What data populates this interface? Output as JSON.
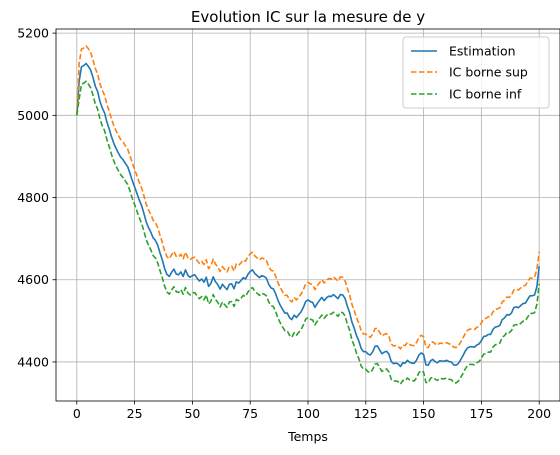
{
  "chart_data": {
    "type": "line",
    "title": "Evolution IC sur la mesure de y",
    "xlabel": "Temps",
    "ylabel": "",
    "xlim": [
      -9,
      209
    ],
    "ylim": [
      4305,
      5210
    ],
    "xticks": [
      0,
      25,
      50,
      75,
      100,
      125,
      150,
      175,
      200
    ],
    "yticks": [
      4400,
      4600,
      4800,
      5000,
      5200
    ],
    "grid": true,
    "legend_position": "top-right",
    "series": [
      {
        "name": "Estimation",
        "color": "#1f77b4",
        "dash": "solid",
        "x": [
          0,
          1,
          2,
          3,
          4,
          5,
          6,
          7,
          8,
          9,
          10,
          11,
          12,
          13,
          14,
          15,
          16,
          17,
          18,
          19,
          20,
          21,
          22,
          23,
          24,
          25,
          26,
          27,
          28,
          29,
          30,
          31,
          32,
          33,
          34,
          35,
          36,
          37,
          38,
          39,
          40,
          41,
          42,
          43,
          44,
          45,
          46,
          47,
          48,
          49,
          50,
          51,
          52,
          53,
          54,
          55,
          56,
          57,
          58,
          59,
          60,
          61,
          62,
          63,
          64,
          65,
          66,
          67,
          68,
          69,
          70,
          71,
          72,
          73,
          74,
          75,
          76,
          77,
          78,
          79,
          80,
          81,
          82,
          83,
          84,
          85,
          86,
          87,
          88,
          89,
          90,
          91,
          92,
          93,
          94,
          95,
          96,
          97,
          98,
          99,
          100,
          101,
          102,
          103,
          104,
          105,
          106,
          107,
          108,
          109,
          110,
          111,
          112,
          113,
          114,
          115,
          116,
          117,
          118,
          119,
          120,
          121,
          122,
          123,
          124,
          125,
          126,
          127,
          128,
          129,
          130,
          131,
          132,
          133,
          134,
          135,
          136,
          137,
          138,
          139,
          140,
          141,
          142,
          143,
          144,
          145,
          146,
          147,
          148,
          149,
          150,
          151,
          152,
          153,
          154,
          155,
          156,
          157,
          158,
          159,
          160,
          161,
          162,
          163,
          164,
          165,
          166,
          167,
          168,
          169,
          170,
          171,
          172,
          173,
          174,
          175,
          176,
          177,
          178,
          179,
          180,
          181,
          182,
          183,
          184,
          185,
          186,
          187,
          188,
          189,
          190,
          191,
          192,
          193,
          194,
          195,
          196,
          197,
          198,
          199,
          200
        ],
        "values": [
          5000,
          5082,
          5118,
          5121,
          5126,
          5119,
          5110,
          5092,
          5071,
          5058,
          5034,
          5018,
          5006,
          4984,
          4967,
          4948,
          4932,
          4919,
          4908,
          4898,
          4892,
          4883,
          4875,
          4859,
          4841,
          4826,
          4810,
          4794,
          4781,
          4762,
          4741,
          4727,
          4716,
          4702,
          4696,
          4684,
          4665,
          4648,
          4627,
          4613,
          4608,
          4618,
          4626,
          4614,
          4612,
          4619,
          4608,
          4624,
          4611,
          4606,
          4610,
          4612,
          4604,
          4597,
          4602,
          4594,
          4606,
          4584,
          4591,
          4607,
          4595,
          4588,
          4577,
          4589,
          4582,
          4576,
          4589,
          4590,
          4578,
          4595,
          4592,
          4598,
          4605,
          4602,
          4613,
          4620,
          4624,
          4615,
          4610,
          4605,
          4610,
          4608,
          4604,
          4589,
          4580,
          4578,
          4566,
          4550,
          4538,
          4528,
          4519,
          4519,
          4508,
          4503,
          4514,
          4508,
          4515,
          4522,
          4533,
          4547,
          4551,
          4547,
          4545,
          4533,
          4542,
          4550,
          4557,
          4549,
          4556,
          4560,
          4559,
          4564,
          4559,
          4554,
          4564,
          4563,
          4555,
          4536,
          4520,
          4497,
          4482,
          4464,
          4451,
          4433,
          4425,
          4425,
          4419,
          4417,
          4425,
          4438,
          4439,
          4429,
          4420,
          4424,
          4426,
          4419,
          4401,
          4396,
          4397,
          4395,
          4389,
          4398,
          4397,
          4404,
          4399,
          4397,
          4397,
          4405,
          4417,
          4422,
          4418,
          4393,
          4392,
          4403,
          4406,
          4401,
          4398,
          4403,
          4402,
          4402,
          4404,
          4401,
          4400,
          4393,
          4392,
          4396,
          4405,
          4415,
          4426,
          4434,
          4437,
          4437,
          4436,
          4441,
          4444,
          4452,
          4462,
          4463,
          4467,
          4467,
          4479,
          4485,
          4486,
          4489,
          4503,
          4507,
          4515,
          4514,
          4519,
          4532,
          4534,
          4532,
          4537,
          4542,
          4543,
          4552,
          4561,
          4561,
          4563,
          4583,
          4633
        ]
      },
      {
        "name": "IC borne sup",
        "color": "#ff7f0e",
        "dash": "dashed",
        "x": [
          0,
          1,
          2,
          3,
          4,
          5,
          6,
          7,
          8,
          9,
          10,
          11,
          12,
          13,
          14,
          15,
          16,
          17,
          18,
          19,
          20,
          21,
          22,
          23,
          24,
          25,
          26,
          27,
          28,
          29,
          30,
          31,
          32,
          33,
          34,
          35,
          36,
          37,
          38,
          39,
          40,
          41,
          42,
          43,
          44,
          45,
          46,
          47,
          48,
          49,
          50,
          51,
          52,
          53,
          54,
          55,
          56,
          57,
          58,
          59,
          60,
          61,
          62,
          63,
          64,
          65,
          66,
          67,
          68,
          69,
          70,
          71,
          72,
          73,
          74,
          75,
          76,
          77,
          78,
          79,
          80,
          81,
          82,
          83,
          84,
          85,
          86,
          87,
          88,
          89,
          90,
          91,
          92,
          93,
          94,
          95,
          96,
          97,
          98,
          99,
          100,
          101,
          102,
          103,
          104,
          105,
          106,
          107,
          108,
          109,
          110,
          111,
          112,
          113,
          114,
          115,
          116,
          117,
          118,
          119,
          120,
          121,
          122,
          123,
          124,
          125,
          126,
          127,
          128,
          129,
          130,
          131,
          132,
          133,
          134,
          135,
          136,
          137,
          138,
          139,
          140,
          141,
          142,
          143,
          144,
          145,
          146,
          147,
          148,
          149,
          150,
          151,
          152,
          153,
          154,
          155,
          156,
          157,
          158,
          159,
          160,
          161,
          162,
          163,
          164,
          165,
          166,
          167,
          168,
          169,
          170,
          171,
          172,
          173,
          174,
          175,
          176,
          177,
          178,
          179,
          180,
          181,
          182,
          183,
          184,
          185,
          186,
          187,
          188,
          189,
          190,
          191,
          192,
          193,
          194,
          195,
          196,
          197,
          198,
          199,
          200
        ],
        "values": [
          5000,
          5125,
          5161,
          5164,
          5169,
          5162,
          5153,
          5135,
          5114,
          5101,
          5077,
          5061,
          5049,
          5027,
          5010,
          4991,
          4975,
          4962,
          4951,
          4941,
          4935,
          4926,
          4918,
          4902,
          4884,
          4869,
          4853,
          4837,
          4824,
          4805,
          4784,
          4770,
          4759,
          4745,
          4739,
          4727,
          4708,
          4691,
          4670,
          4656,
          4651,
          4661,
          4669,
          4657,
          4655,
          4662,
          4651,
          4667,
          4654,
          4649,
          4653,
          4655,
          4647,
          4640,
          4645,
          4637,
          4649,
          4627,
          4634,
          4650,
          4638,
          4631,
          4620,
          4632,
          4625,
          4619,
          4632,
          4633,
          4621,
          4638,
          4635,
          4641,
          4648,
          4645,
          4656,
          4663,
          4667,
          4658,
          4653,
          4648,
          4653,
          4651,
          4647,
          4632,
          4623,
          4621,
          4609,
          4593,
          4581,
          4571,
          4562,
          4562,
          4551,
          4546,
          4557,
          4551,
          4558,
          4565,
          4576,
          4590,
          4594,
          4590,
          4588,
          4576,
          4585,
          4593,
          4600,
          4592,
          4599,
          4603,
          4602,
          4607,
          4602,
          4597,
          4607,
          4606,
          4598,
          4579,
          4563,
          4540,
          4525,
          4507,
          4494,
          4476,
          4468,
          4468,
          4462,
          4460,
          4468,
          4481,
          4482,
          4472,
          4463,
          4467,
          4469,
          4462,
          4444,
          4439,
          4440,
          4438,
          4432,
          4441,
          4440,
          4447,
          4442,
          4440,
          4440,
          4448,
          4460,
          4465,
          4461,
          4436,
          4435,
          4446,
          4449,
          4444,
          4441,
          4446,
          4445,
          4445,
          4447,
          4444,
          4443,
          4436,
          4435,
          4439,
          4448,
          4458,
          4469,
          4477,
          4480,
          4480,
          4479,
          4484,
          4487,
          4495,
          4505,
          4506,
          4510,
          4510,
          4522,
          4528,
          4529,
          4532,
          4546,
          4550,
          4558,
          4557,
          4562,
          4575,
          4577,
          4575,
          4580,
          4585,
          4586,
          4595,
          4604,
          4604,
          4606,
          4626,
          4668
        ]
      },
      {
        "name": "IC borne inf",
        "color": "#2ca02c",
        "dash": "dashed",
        "x": [
          0,
          1,
          2,
          3,
          4,
          5,
          6,
          7,
          8,
          9,
          10,
          11,
          12,
          13,
          14,
          15,
          16,
          17,
          18,
          19,
          20,
          21,
          22,
          23,
          24,
          25,
          26,
          27,
          28,
          29,
          30,
          31,
          32,
          33,
          34,
          35,
          36,
          37,
          38,
          39,
          40,
          41,
          42,
          43,
          44,
          45,
          46,
          47,
          48,
          49,
          50,
          51,
          52,
          53,
          54,
          55,
          56,
          57,
          58,
          59,
          60,
          61,
          62,
          63,
          64,
          65,
          66,
          67,
          68,
          69,
          70,
          71,
          72,
          73,
          74,
          75,
          76,
          77,
          78,
          79,
          80,
          81,
          82,
          83,
          84,
          85,
          86,
          87,
          88,
          89,
          90,
          91,
          92,
          93,
          94,
          95,
          96,
          97,
          98,
          99,
          100,
          101,
          102,
          103,
          104,
          105,
          106,
          107,
          108,
          109,
          110,
          111,
          112,
          113,
          114,
          115,
          116,
          117,
          118,
          119,
          120,
          121,
          122,
          123,
          124,
          125,
          126,
          127,
          128,
          129,
          130,
          131,
          132,
          133,
          134,
          135,
          136,
          137,
          138,
          139,
          140,
          141,
          142,
          143,
          144,
          145,
          146,
          147,
          148,
          149,
          150,
          151,
          152,
          153,
          154,
          155,
          156,
          157,
          158,
          159,
          160,
          161,
          162,
          163,
          164,
          165,
          166,
          167,
          168,
          169,
          170,
          171,
          172,
          173,
          174,
          175,
          176,
          177,
          178,
          179,
          180,
          181,
          182,
          183,
          184,
          185,
          186,
          187,
          188,
          189,
          190,
          191,
          192,
          193,
          194,
          195,
          196,
          197,
          198,
          199,
          200
        ],
        "values": [
          5000,
          5039,
          5075,
          5078,
          5083,
          5076,
          5067,
          5049,
          5028,
          5015,
          4991,
          4975,
          4963,
          4941,
          4924,
          4905,
          4889,
          4876,
          4865,
          4855,
          4849,
          4840,
          4832,
          4816,
          4798,
          4783,
          4767,
          4751,
          4738,
          4719,
          4698,
          4684,
          4673,
          4659,
          4653,
          4641,
          4622,
          4605,
          4584,
          4570,
          4565,
          4575,
          4583,
          4571,
          4569,
          4576,
          4565,
          4581,
          4568,
          4563,
          4567,
          4569,
          4561,
          4554,
          4559,
          4551,
          4563,
          4541,
          4548,
          4564,
          4552,
          4545,
          4534,
          4546,
          4539,
          4533,
          4546,
          4547,
          4535,
          4552,
          4549,
          4555,
          4562,
          4559,
          4570,
          4577,
          4581,
          4572,
          4567,
          4562,
          4567,
          4565,
          4561,
          4546,
          4537,
          4535,
          4523,
          4507,
          4495,
          4485,
          4476,
          4476,
          4465,
          4460,
          4471,
          4465,
          4472,
          4479,
          4490,
          4504,
          4508,
          4504,
          4502,
          4490,
          4499,
          4507,
          4514,
          4506,
          4513,
          4517,
          4516,
          4521,
          4516,
          4511,
          4521,
          4520,
          4512,
          4493,
          4477,
          4454,
          4439,
          4421,
          4408,
          4390,
          4382,
          4382,
          4376,
          4374,
          4382,
          4395,
          4396,
          4386,
          4377,
          4381,
          4383,
          4376,
          4358,
          4353,
          4354,
          4352,
          4346,
          4355,
          4354,
          4361,
          4356,
          4354,
          4354,
          4362,
          4374,
          4379,
          4375,
          4350,
          4349,
          4360,
          4363,
          4358,
          4355,
          4360,
          4359,
          4359,
          4361,
          4358,
          4357,
          4350,
          4349,
          4353,
          4362,
          4372,
          4383,
          4391,
          4394,
          4394,
          4393,
          4398,
          4401,
          4409,
          4419,
          4420,
          4424,
          4424,
          4436,
          4442,
          4443,
          4446,
          4460,
          4464,
          4472,
          4471,
          4476,
          4489,
          4491,
          4489,
          4494,
          4499,
          4500,
          4509,
          4518,
          4518,
          4520,
          4540,
          4590
        ]
      }
    ]
  }
}
